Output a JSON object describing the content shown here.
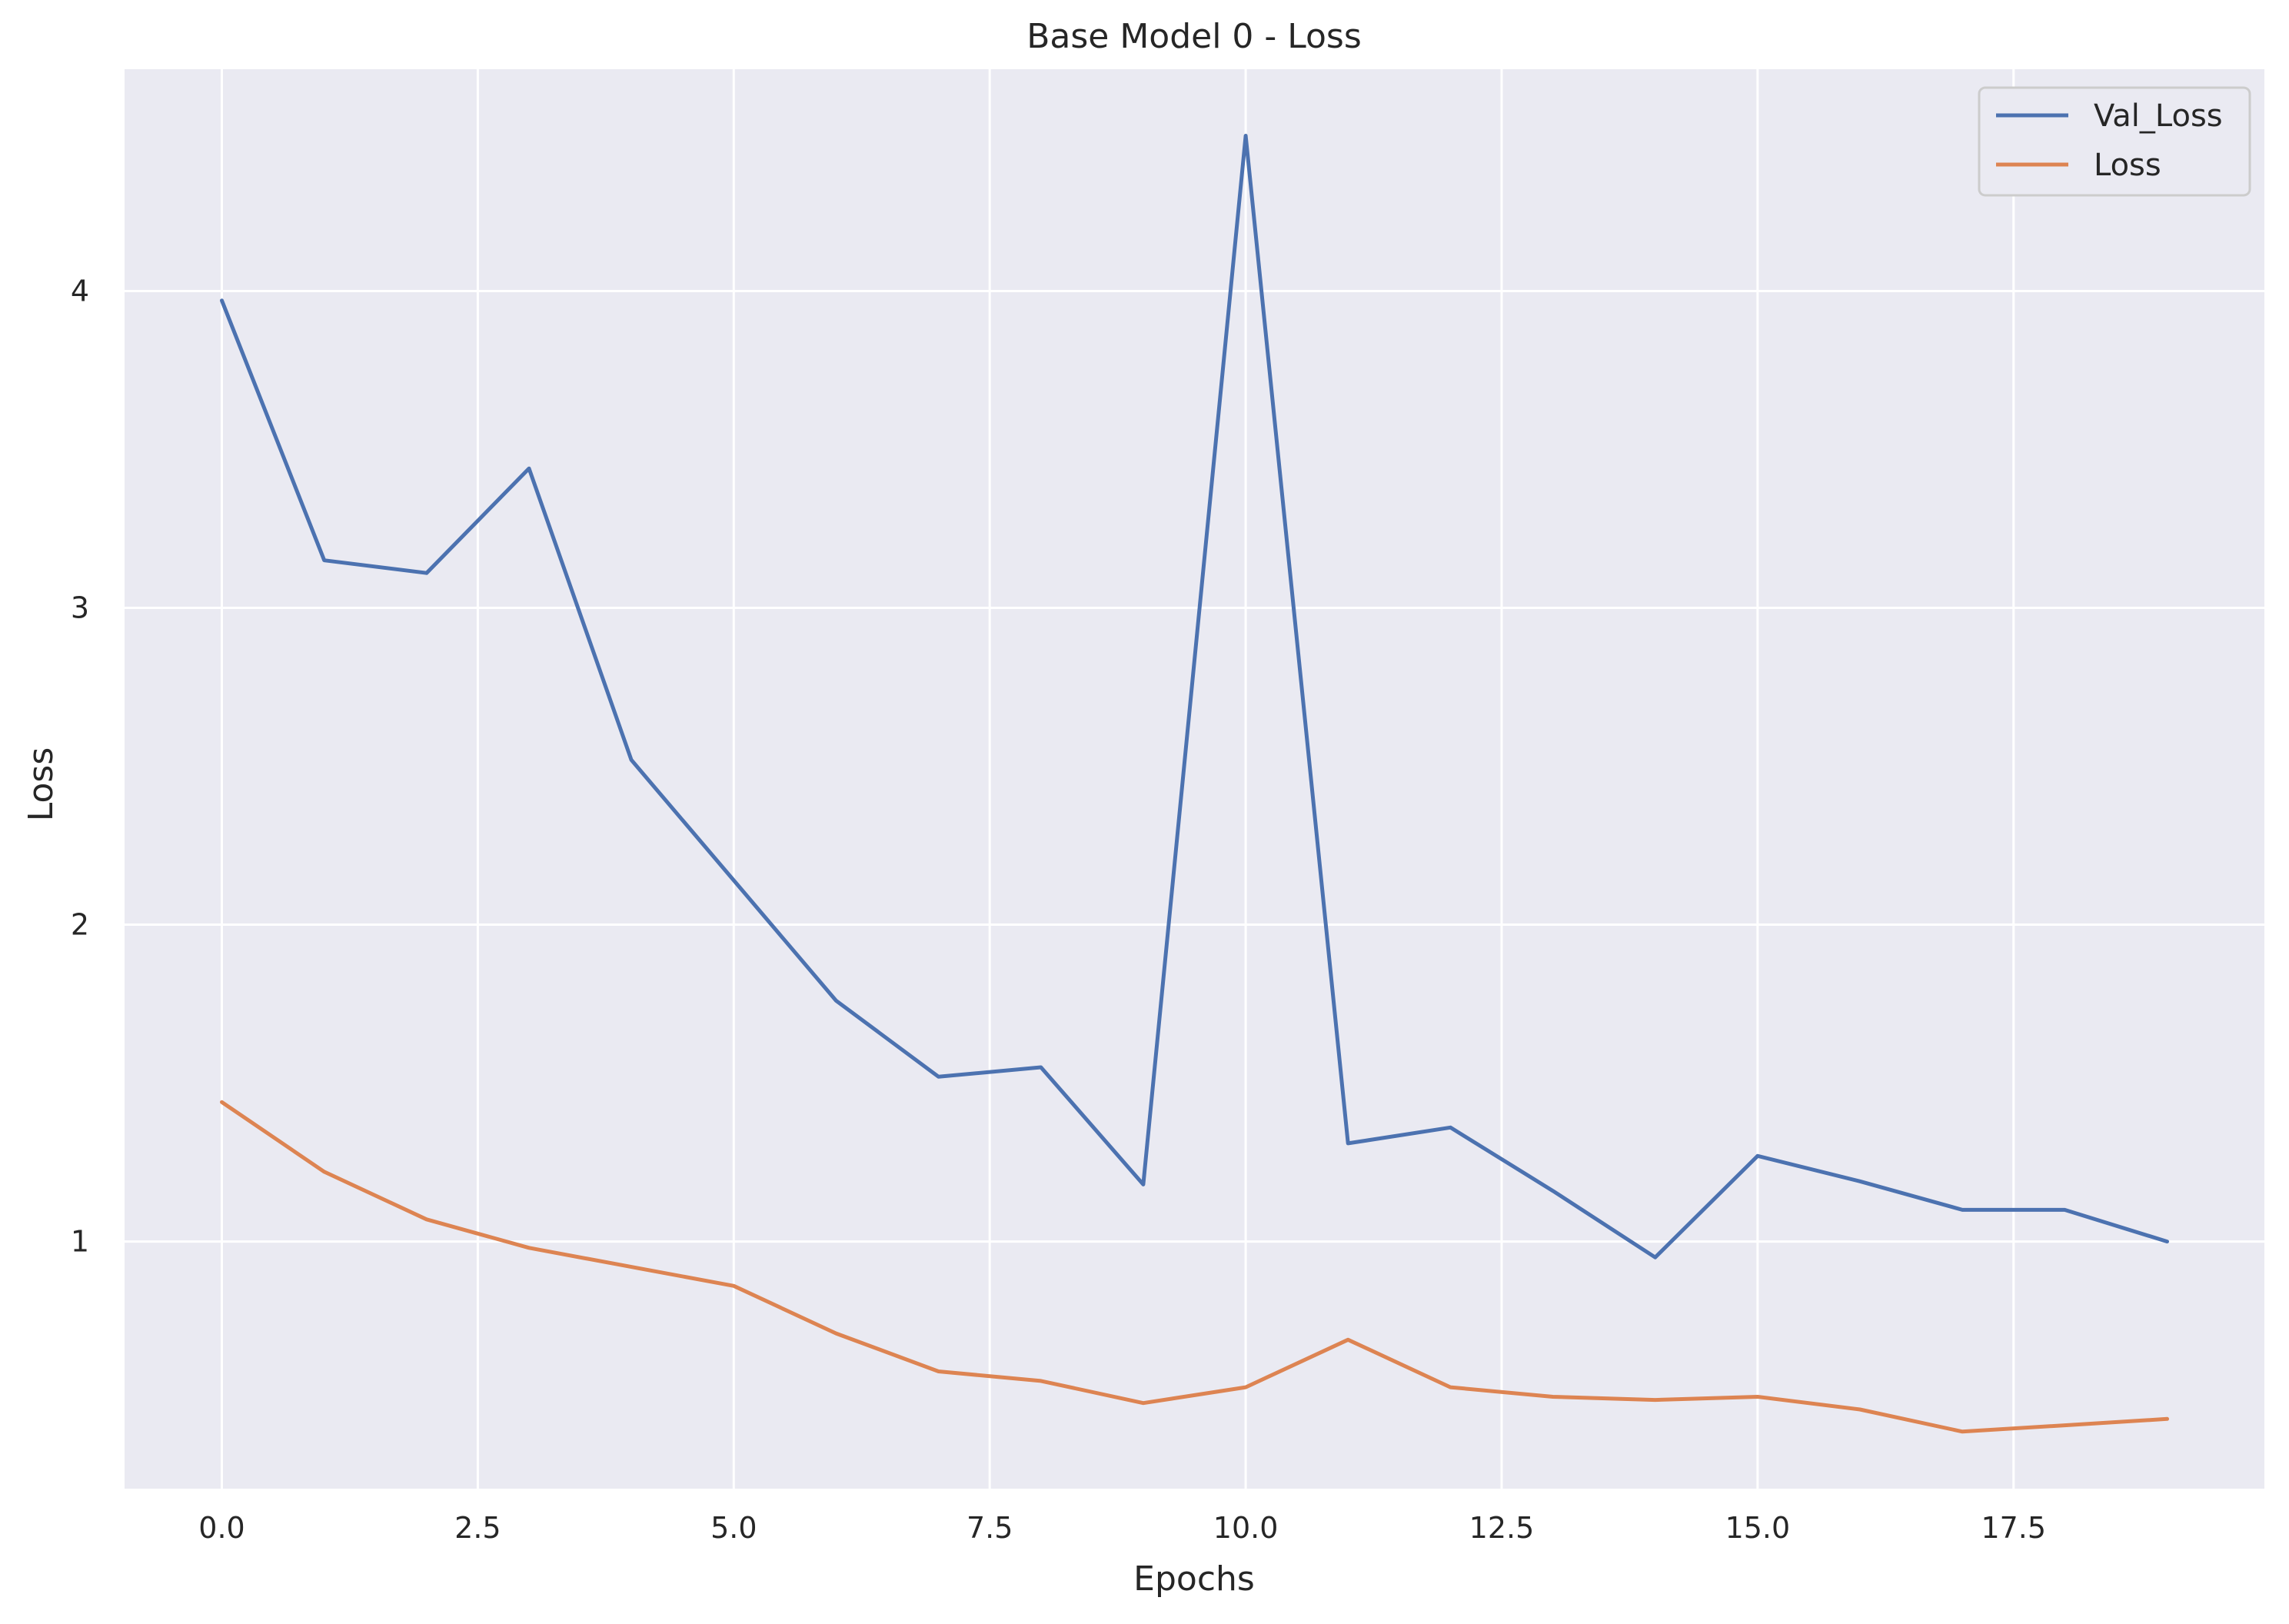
{
  "chart_data": {
    "type": "line",
    "title": "Base Model 0 - Loss",
    "xlabel": "Epochs",
    "ylabel": "Loss",
    "x": [
      0,
      1,
      2,
      3,
      4,
      5,
      6,
      7,
      8,
      9,
      10,
      11,
      12,
      13,
      14,
      15,
      16,
      17,
      18,
      19
    ],
    "series": [
      {
        "name": "Val_Loss",
        "color": "#4c72b0",
        "values": [
          3.97,
          3.15,
          3.11,
          3.44,
          2.52,
          2.14,
          1.76,
          1.52,
          1.55,
          1.18,
          4.49,
          1.31,
          1.36,
          1.16,
          0.95,
          1.27,
          1.19,
          1.1,
          1.1,
          1.0
        ]
      },
      {
        "name": "Loss",
        "color": "#dd8452",
        "values": [
          1.44,
          1.22,
          1.07,
          0.98,
          0.92,
          0.86,
          0.71,
          0.59,
          0.56,
          0.49,
          0.54,
          0.69,
          0.54,
          0.51,
          0.5,
          0.51,
          0.47,
          0.4,
          0.42,
          0.44
        ]
      }
    ],
    "xlim": [
      -0.95,
      19.95
    ],
    "ylim": [
      0.22,
      4.7
    ],
    "xticks": [
      0,
      2.5,
      5,
      7.5,
      10,
      12.5,
      15,
      17.5
    ],
    "xtick_labels": [
      "0.0",
      "2.5",
      "5.0",
      "7.5",
      "10.0",
      "12.5",
      "15.0",
      "17.5"
    ],
    "yticks": [
      1,
      2,
      3,
      4
    ],
    "ytick_labels": [
      "1",
      "2",
      "3",
      "4"
    ],
    "grid": true,
    "legend_position": "top-right",
    "background_color": "#eaeaf2",
    "grid_color": "#ffffff"
  }
}
